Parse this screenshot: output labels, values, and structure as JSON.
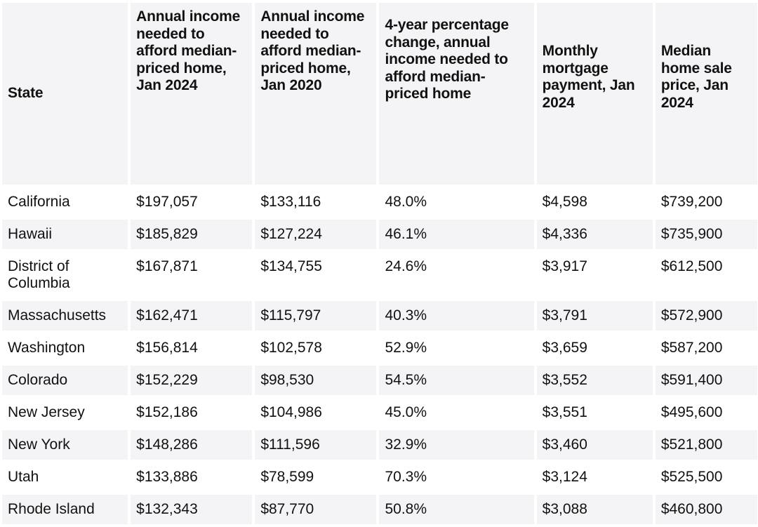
{
  "chart_data": {
    "type": "table",
    "columns": [
      "State",
      "Annual income needed to afford median-priced home, Jan 2024",
      "Annual income needed to afford median-priced home, Jan 2020",
      "4-year percentage change, annual income needed to afford median-priced home",
      "Monthly mortgage payment, Jan 2024",
      "Median home sale price, Jan 2024"
    ],
    "rows": [
      [
        "California",
        "$197,057",
        "$133,116",
        "48.0%",
        "$4,598",
        "$739,200"
      ],
      [
        "Hawaii",
        "$185,829",
        "$127,224",
        "46.1%",
        "$4,336",
        "$735,900"
      ],
      [
        "District of Columbia",
        "$167,871",
        "$134,755",
        "24.6%",
        "$3,917",
        "$612,500"
      ],
      [
        "Massachusetts",
        "$162,471",
        "$115,797",
        "40.3%",
        "$3,791",
        "$572,900"
      ],
      [
        "Washington",
        "$156,814",
        "$102,578",
        "52.9%",
        "$3,659",
        "$587,200"
      ],
      [
        "Colorado",
        "$152,229",
        "$98,530",
        "54.5%",
        "$3,552",
        "$591,400"
      ],
      [
        "New Jersey",
        "$152,186",
        "$104,986",
        "45.0%",
        "$3,551",
        "$495,600"
      ],
      [
        "New York",
        "$148,286",
        "$111,596",
        "32.9%",
        "$3,460",
        "$521,800"
      ],
      [
        "Utah",
        "$133,886",
        "$78,599",
        "70.3%",
        "$3,124",
        "$525,500"
      ],
      [
        "Rhode Island",
        "$132,343",
        "$87,770",
        "50.8%",
        "$3,088",
        "$460,800"
      ]
    ]
  },
  "colors": {
    "band": "#f4f4f6",
    "text": "#111111"
  }
}
